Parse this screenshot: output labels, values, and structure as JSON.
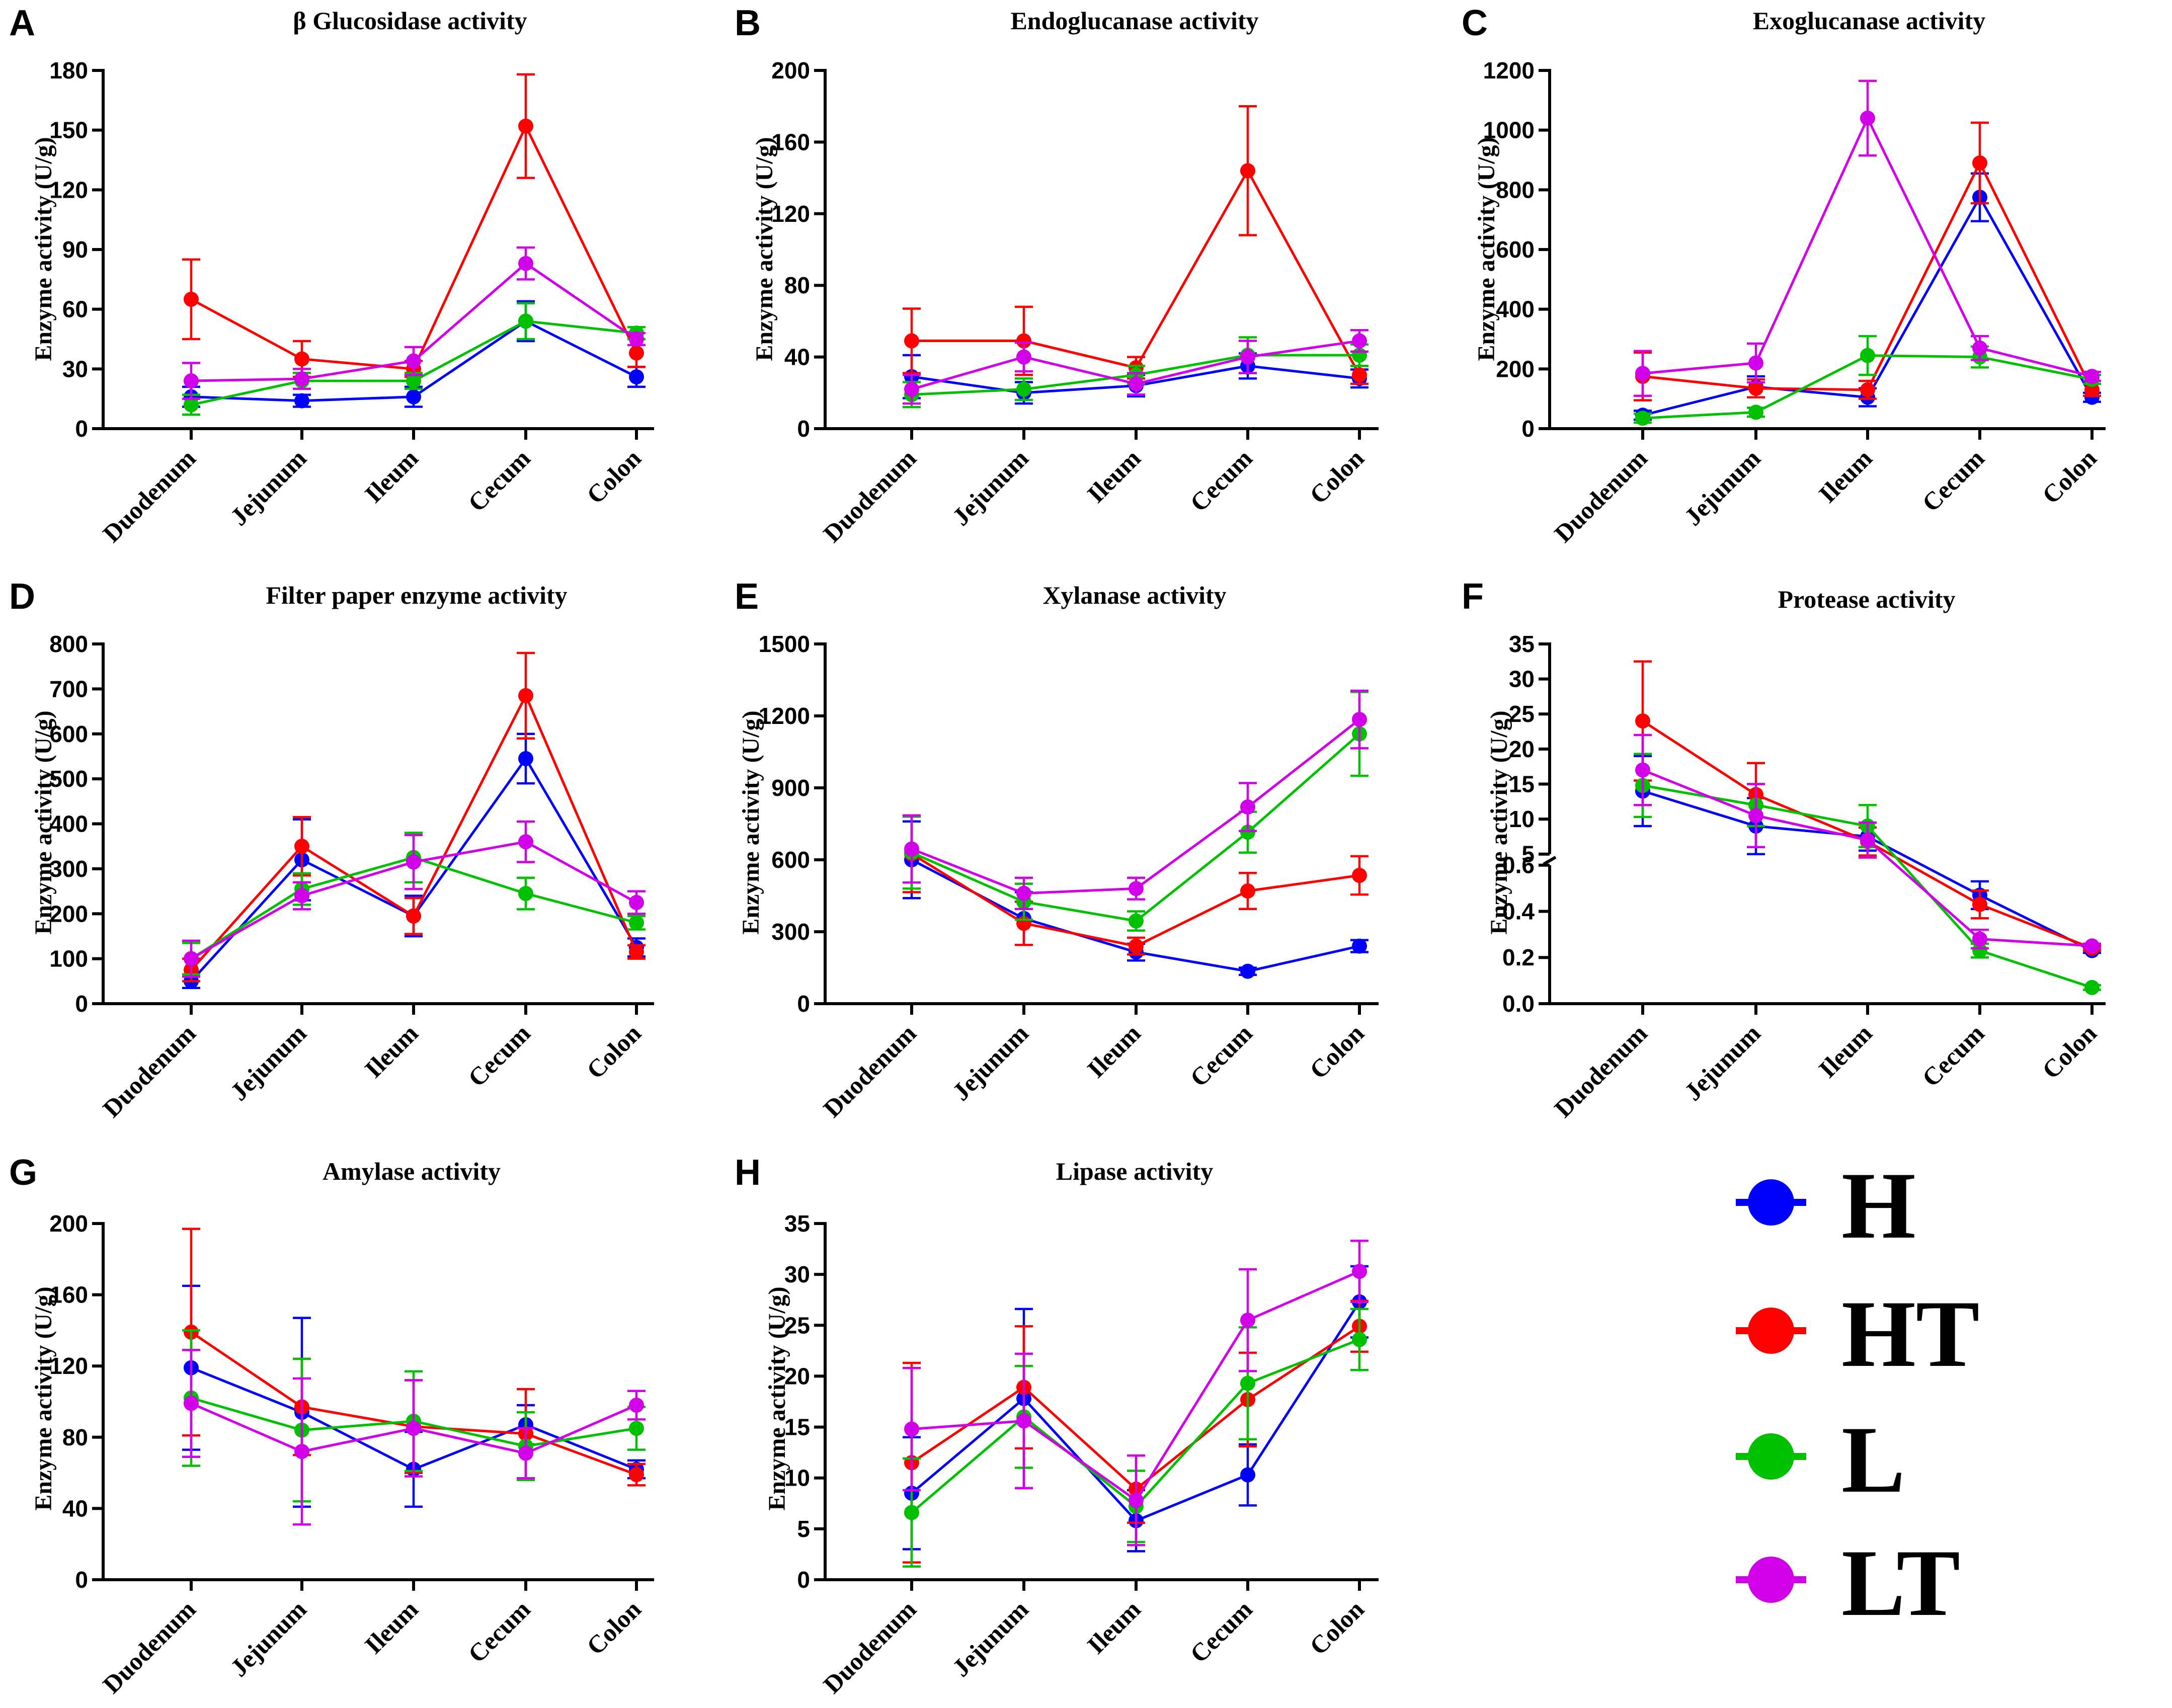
{
  "categories": [
    "Duodenum",
    "Jejunum",
    "Ileum",
    "Cecum",
    "Colon"
  ],
  "ylabel": "Enzyme activity (U/g)",
  "legend": [
    {
      "name": "H",
      "color": "#0000ff"
    },
    {
      "name": "HT",
      "color": "#ff0000"
    },
    {
      "name": "L",
      "color": "#00c000"
    },
    {
      "name": "LT",
      "color": "#d000e8"
    }
  ],
  "chart_data": [
    {
      "panel": "A",
      "title": "β Glucosidase activity",
      "type": "line",
      "ylim": [
        0,
        180
      ],
      "yticks": [
        0,
        30,
        60,
        90,
        120,
        150,
        180
      ],
      "ytick_labels": [
        "0",
        "30",
        "60",
        "90",
        "120",
        "150",
        "180"
      ],
      "series": [
        {
          "name": "H",
          "values": [
            16,
            14,
            16,
            54,
            26
          ],
          "err": [
            5,
            3,
            5,
            10,
            5
          ]
        },
        {
          "name": "HT",
          "values": [
            65,
            35,
            30,
            152,
            38
          ],
          "err": [
            20,
            9,
            4,
            26,
            7
          ]
        },
        {
          "name": "L",
          "values": [
            12,
            24,
            24,
            54,
            48
          ],
          "err": [
            5,
            4,
            4,
            9,
            3
          ]
        },
        {
          "name": "LT",
          "values": [
            24,
            25,
            34,
            83,
            45
          ],
          "err": [
            9,
            5,
            7,
            8,
            3
          ]
        }
      ]
    },
    {
      "panel": "B",
      "title": "Endoglucanase activity",
      "type": "line",
      "ylim": [
        0,
        200
      ],
      "yticks": [
        0,
        40,
        80,
        120,
        160,
        200
      ],
      "ytick_labels": [
        "0",
        "40",
        "80",
        "120",
        "160",
        "200"
      ],
      "series": [
        {
          "name": "H",
          "values": [
            29,
            20,
            24,
            35,
            28
          ],
          "err": [
            12,
            6,
            6,
            7,
            5
          ]
        },
        {
          "name": "HT",
          "values": [
            49,
            49,
            34,
            144,
            30
          ],
          "err": [
            18,
            19,
            6,
            36,
            5
          ]
        },
        {
          "name": "L",
          "values": [
            19,
            22,
            30,
            41,
            41
          ],
          "err": [
            7,
            6,
            5,
            10,
            6
          ]
        },
        {
          "name": "LT",
          "values": [
            22,
            40,
            25,
            40,
            49
          ],
          "err": [
            8,
            8,
            6,
            9,
            6
          ]
        }
      ]
    },
    {
      "panel": "C",
      "title": "Exoglucanase activity",
      "type": "line",
      "ylim": [
        0,
        1200
      ],
      "yticks": [
        0,
        200,
        400,
        600,
        800,
        1000,
        1200
      ],
      "ytick_labels": [
        "0",
        "200",
        "400",
        "600",
        "800",
        "1000",
        "1200"
      ],
      "series": [
        {
          "name": "H",
          "values": [
            45,
            140,
            105,
            775,
            105
          ],
          "err": [
            15,
            35,
            30,
            80,
            15
          ]
        },
        {
          "name": "HT",
          "values": [
            175,
            135,
            130,
            890,
            130
          ],
          "err": [
            80,
            30,
            30,
            135,
            20
          ]
        },
        {
          "name": "L",
          "values": [
            35,
            55,
            245,
            240,
            165
          ],
          "err": [
            15,
            15,
            65,
            35,
            15
          ]
        },
        {
          "name": "LT",
          "values": [
            185,
            220,
            1040,
            270,
            175
          ],
          "err": [
            75,
            65,
            125,
            40,
            15
          ]
        }
      ]
    },
    {
      "panel": "D",
      "title": "Filter paper enzyme activity",
      "type": "line",
      "ylim": [
        0,
        800
      ],
      "yticks": [
        0,
        100,
        200,
        300,
        400,
        500,
        600,
        700,
        800
      ],
      "ytick_labels": [
        "0",
        "100",
        "200",
        "300",
        "400",
        "500",
        "600",
        "700",
        "800"
      ],
      "series": [
        {
          "name": "H",
          "values": [
            50,
            320,
            195,
            545,
            125
          ],
          "err": [
            15,
            90,
            45,
            55,
            20
          ]
        },
        {
          "name": "HT",
          "values": [
            75,
            350,
            195,
            685,
            115
          ],
          "err": [
            25,
            65,
            40,
            95,
            15
          ]
        },
        {
          "name": "L",
          "values": [
            100,
            255,
            325,
            245,
            180
          ],
          "err": [
            35,
            35,
            55,
            35,
            15
          ]
        },
        {
          "name": "LT",
          "values": [
            100,
            240,
            315,
            360,
            225
          ],
          "err": [
            40,
            30,
            60,
            45,
            25
          ]
        }
      ]
    },
    {
      "panel": "E",
      "title": "Xylanase activity",
      "type": "line",
      "ylim": [
        0,
        1500
      ],
      "yticks": [
        0,
        300,
        600,
        900,
        1200,
        1500
      ],
      "ytick_labels": [
        "0",
        "300",
        "600",
        "900",
        "1200",
        "1500"
      ],
      "series": [
        {
          "name": "H",
          "values": [
            600,
            355,
            215,
            135,
            240
          ],
          "err": [
            160,
            110,
            35,
            15,
            25
          ]
        },
        {
          "name": "HT",
          "values": [
            625,
            335,
            240,
            470,
            535
          ],
          "err": [
            160,
            90,
            35,
            75,
            80
          ]
        },
        {
          "name": "L",
          "values": [
            630,
            425,
            345,
            715,
            1125
          ],
          "err": [
            150,
            75,
            40,
            85,
            175
          ]
        },
        {
          "name": "LT",
          "values": [
            645,
            460,
            480,
            820,
            1185
          ],
          "err": [
            140,
            65,
            45,
            100,
            120
          ]
        }
      ]
    },
    {
      "panel": "F",
      "title": "Protease activity",
      "type": "line",
      "ylim": [
        0,
        35
      ],
      "y_axis_break": {
        "lower": [
          0,
          0.6
        ],
        "upper": [
          5,
          35
        ]
      },
      "yticks": [
        0,
        0.2,
        0.4,
        0.6,
        5,
        10,
        15,
        20,
        25,
        30,
        35
      ],
      "ytick_labels": [
        "0.0",
        "0.2",
        "0.4",
        "0.6",
        "5",
        "10",
        "15",
        "20",
        "25",
        "30",
        "35"
      ],
      "series": [
        {
          "name": "H",
          "values": [
            14,
            9,
            7.5,
            0.47,
            0.23
          ],
          "err": [
            5,
            4,
            2,
            0.06,
            0.01
          ]
        },
        {
          "name": "HT",
          "values": [
            24,
            13.5,
            6.8,
            0.43,
            0.24
          ],
          "err": [
            8.5,
            4.5,
            2,
            0.06,
            0.01
          ]
        },
        {
          "name": "L",
          "values": [
            14.8,
            12,
            9,
            0.23,
            0.07
          ],
          "err": [
            4.5,
            3,
            3,
            0.03,
            0.01
          ]
        },
        {
          "name": "LT",
          "values": [
            17,
            10.5,
            7,
            0.28,
            0.25
          ],
          "err": [
            5,
            4.5,
            2.5,
            0.04,
            0.01
          ]
        }
      ]
    },
    {
      "panel": "G",
      "title": "Amylase activity",
      "type": "line",
      "ylim": [
        0,
        200
      ],
      "yticks": [
        0,
        40,
        80,
        120,
        160,
        200
      ],
      "ytick_labels": [
        "0",
        "40",
        "80",
        "120",
        "160",
        "200"
      ],
      "series": [
        {
          "name": "H",
          "values": [
            119,
            94,
            62,
            87,
            62
          ],
          "err": [
            46,
            53,
            21,
            11,
            5
          ]
        },
        {
          "name": "HT",
          "values": [
            139,
            97,
            86,
            82,
            59
          ],
          "err": [
            58,
            27,
            26,
            25,
            6
          ]
        },
        {
          "name": "L",
          "values": [
            102,
            84,
            89,
            75,
            85
          ],
          "err": [
            38,
            40,
            28,
            19,
            12
          ]
        },
        {
          "name": "LT",
          "values": [
            99,
            72,
            85,
            71,
            98
          ],
          "err": [
            30,
            41,
            27,
            14,
            8
          ]
        }
      ]
    },
    {
      "panel": "H",
      "title": "Lipase activity",
      "type": "line",
      "ylim": [
        0,
        35
      ],
      "yticks": [
        0,
        5,
        10,
        15,
        20,
        25,
        30,
        35
      ],
      "ytick_labels": [
        "0",
        "5",
        "10",
        "15",
        "20",
        "25",
        "30",
        "35"
      ],
      "series": [
        {
          "name": "H",
          "values": [
            8.5,
            17.8,
            5.8,
            10.3,
            27.3
          ],
          "err": [
            5.5,
            8.8,
            3.0,
            3.0,
            3.5
          ]
        },
        {
          "name": "HT",
          "values": [
            11.5,
            18.9,
            8.9,
            17.7,
            24.9
          ],
          "err": [
            9.8,
            6.0,
            3.3,
            4.6,
            2.5
          ]
        },
        {
          "name": "L",
          "values": [
            6.6,
            16.0,
            7.2,
            19.3,
            23.6
          ],
          "err": [
            5.3,
            5.0,
            3.5,
            5.5,
            3.0
          ]
        },
        {
          "name": "LT",
          "values": [
            14.8,
            15.6,
            7.8,
            25.5,
            30.3
          ],
          "err": [
            6.0,
            6.6,
            4.4,
            5.0,
            3.0
          ]
        }
      ]
    }
  ]
}
